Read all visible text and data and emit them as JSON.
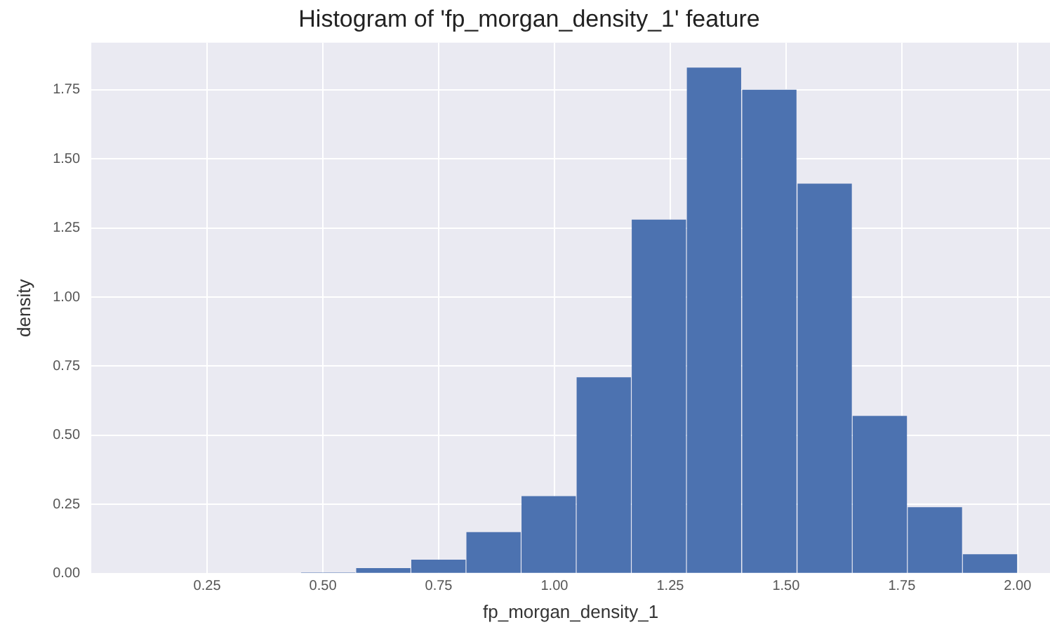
{
  "chart_data": {
    "type": "histogram",
    "title": "Histogram of 'fp_morgan_density_1' feature",
    "xlabel": "fp_morgan_density_1",
    "ylabel": "density",
    "bins": [
      0.452,
      0.571,
      0.69,
      0.809,
      0.928,
      1.047,
      1.166,
      1.285,
      1.404,
      1.524,
      1.643,
      1.762,
      1.881,
      2.0
    ],
    "values": [
      0.004,
      0.02,
      0.05,
      0.15,
      0.28,
      0.71,
      1.28,
      1.83,
      1.75,
      1.41,
      0.57,
      0.24,
      0.07
    ],
    "color": "#4c72b0",
    "xlim": [
      0.0,
      2.07
    ],
    "xticks": [
      {
        "value": 0.25,
        "label": "0.25"
      },
      {
        "value": 0.5,
        "label": "0.50"
      },
      {
        "value": 0.75,
        "label": "0.75"
      },
      {
        "value": 1.0,
        "label": "1.00"
      },
      {
        "value": 1.25,
        "label": "1.25"
      },
      {
        "value": 1.5,
        "label": "1.50"
      },
      {
        "value": 1.75,
        "label": "1.75"
      },
      {
        "value": 2.0,
        "label": "2.00"
      }
    ],
    "ylim": [
      0,
      1.92
    ],
    "yticks": [
      {
        "value": 0,
        "label": "0.00"
      },
      {
        "value": 0.25,
        "label": "0.25"
      },
      {
        "value": 0.5,
        "label": "0.50"
      },
      {
        "value": 0.75,
        "label": "0.75"
      },
      {
        "value": 1.0,
        "label": "1.00"
      },
      {
        "value": 1.25,
        "label": "1.25"
      },
      {
        "value": 1.5,
        "label": "1.50"
      },
      {
        "value": 1.75,
        "label": "1.75"
      }
    ],
    "grid": true
  }
}
